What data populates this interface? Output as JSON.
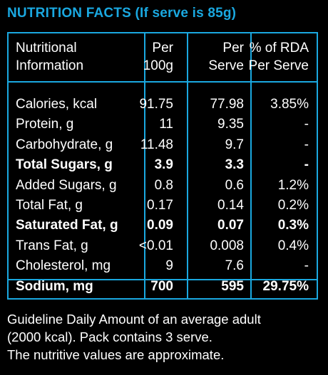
{
  "title": "NUTRITION FACTS (If serve is 85g)",
  "colors": {
    "accent": "#1aa8e0",
    "background": "#000000",
    "text": "#ffffff"
  },
  "headers": {
    "col1": [
      "Nutritional",
      "Information"
    ],
    "col2": [
      "Per",
      "100g"
    ],
    "col3": [
      "Per",
      "Serve"
    ],
    "col4": [
      "% of RDA",
      "Per Serve"
    ]
  },
  "rows": [
    {
      "name": "Calories, kcal",
      "per100g": "91.75",
      "perServe": "77.98",
      "rda": "3.85%",
      "bold": false
    },
    {
      "name": "Protein, g",
      "per100g": "11",
      "perServe": "9.35",
      "rda": "-",
      "bold": false
    },
    {
      "name": "Carbohydrate, g",
      "per100g": "11.48",
      "perServe": "9.7",
      "rda": "-",
      "bold": false
    },
    {
      "name": "Total Sugars, g",
      "per100g": "3.9",
      "perServe": "3.3",
      "rda": "-",
      "bold": true
    },
    {
      "name": "Added Sugars, g",
      "per100g": "0.8",
      "perServe": "0.6",
      "rda": "1.2%",
      "bold": false
    },
    {
      "name": "Total Fat, g",
      "per100g": "0.17",
      "perServe": "0.14",
      "rda": "0.2%",
      "bold": false
    },
    {
      "name": "Saturated Fat, g",
      "per100g": "0.09",
      "perServe": "0.07",
      "rda": "0.3%",
      "bold": true
    },
    {
      "name": "Trans Fat, g",
      "per100g": "<0.01",
      "perServe": "0.008",
      "rda": "0.4%",
      "bold": false
    },
    {
      "name": "Cholesterol, mg",
      "per100g": "9",
      "perServe": "7.6",
      "rda": "-",
      "bold": false
    },
    {
      "name": "Sodium, mg",
      "per100g": "700",
      "perServe": "595",
      "rda": "29.75%",
      "bold": true
    }
  ],
  "footnote": [
    "Guideline Daily Amount of an average adult",
    "(2000 kcal). Pack contains 3 serve.",
    "The nutritive values are approximate."
  ]
}
